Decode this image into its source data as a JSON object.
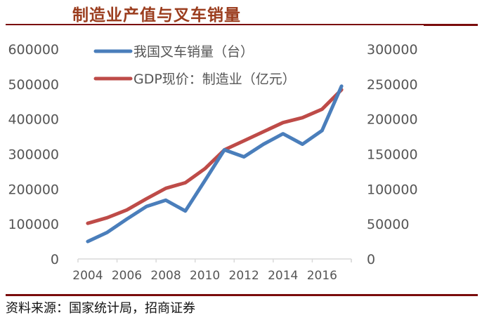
{
  "header": {
    "title": "制造业产值与叉车销量"
  },
  "footer": {
    "source": "资料来源：国家统计局，招商证券"
  },
  "colors": {
    "title": "#9B3D1E",
    "rule": "#7A0C0C",
    "series_blue": "#4A7EBB",
    "series_red": "#BE4B48",
    "axis": "#D9D9D9",
    "tick_text": "#595959"
  },
  "chart_data": {
    "type": "line",
    "title": "制造业产值与叉车销量",
    "xlabel": "",
    "ylabel": "",
    "x": [
      2004,
      2005,
      2006,
      2007,
      2008,
      2009,
      2010,
      2011,
      2012,
      2013,
      2014,
      2015,
      2016,
      2017
    ],
    "x_tick_labels": [
      "2004",
      "2006",
      "2008",
      "2010",
      "2012",
      "2014",
      "2016"
    ],
    "y_left": {
      "lim": [
        0,
        600000
      ],
      "ticks": [
        "0",
        "100000",
        "200000",
        "300000",
        "400000",
        "500000",
        "600000"
      ]
    },
    "y_right": {
      "lim": [
        0,
        300000
      ],
      "ticks": [
        "0",
        "50000",
        "100000",
        "150000",
        "200000",
        "250000",
        "300000"
      ]
    },
    "grid": false,
    "legend_position": "top-left",
    "series": [
      {
        "name": "我国叉车销量（台）",
        "axis": "left",
        "color": "#4A7EBB",
        "values": [
          50000,
          76000,
          114000,
          150000,
          168000,
          137000,
          224000,
          312000,
          292000,
          328000,
          358000,
          328000,
          367000,
          494000
        ]
      },
      {
        "name": "GDP现价：制造业（亿元）",
        "axis": "right",
        "color": "#BE4B48",
        "values": [
          51000,
          59000,
          70000,
          86000,
          101000,
          109000,
          129000,
          156000,
          169000,
          182000,
          195000,
          202000,
          214000,
          242000
        ]
      }
    ]
  }
}
